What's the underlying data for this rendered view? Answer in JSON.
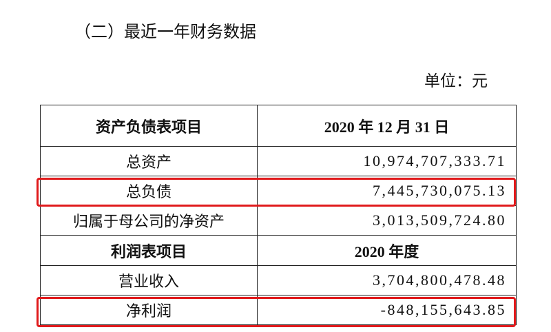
{
  "heading": "（二）最近一年财务数据",
  "unit": "单位：元",
  "table": {
    "sections": [
      {
        "header": [
          "资产负债表项目",
          "2020 年 12 月 31 日"
        ],
        "rows": [
          [
            "总资产",
            "10,974,707,333.71"
          ],
          [
            "总负债",
            "7,445,730,075.13"
          ],
          [
            "归属于母公司的净资产",
            "3,013,509,724.80"
          ]
        ]
      },
      {
        "header": [
          "利润表项目",
          "2020 年度"
        ],
        "rows": [
          [
            "营业收入",
            "3,704,800,478.48"
          ],
          [
            "净利润",
            "-848,155,643.85"
          ]
        ]
      }
    ]
  }
}
